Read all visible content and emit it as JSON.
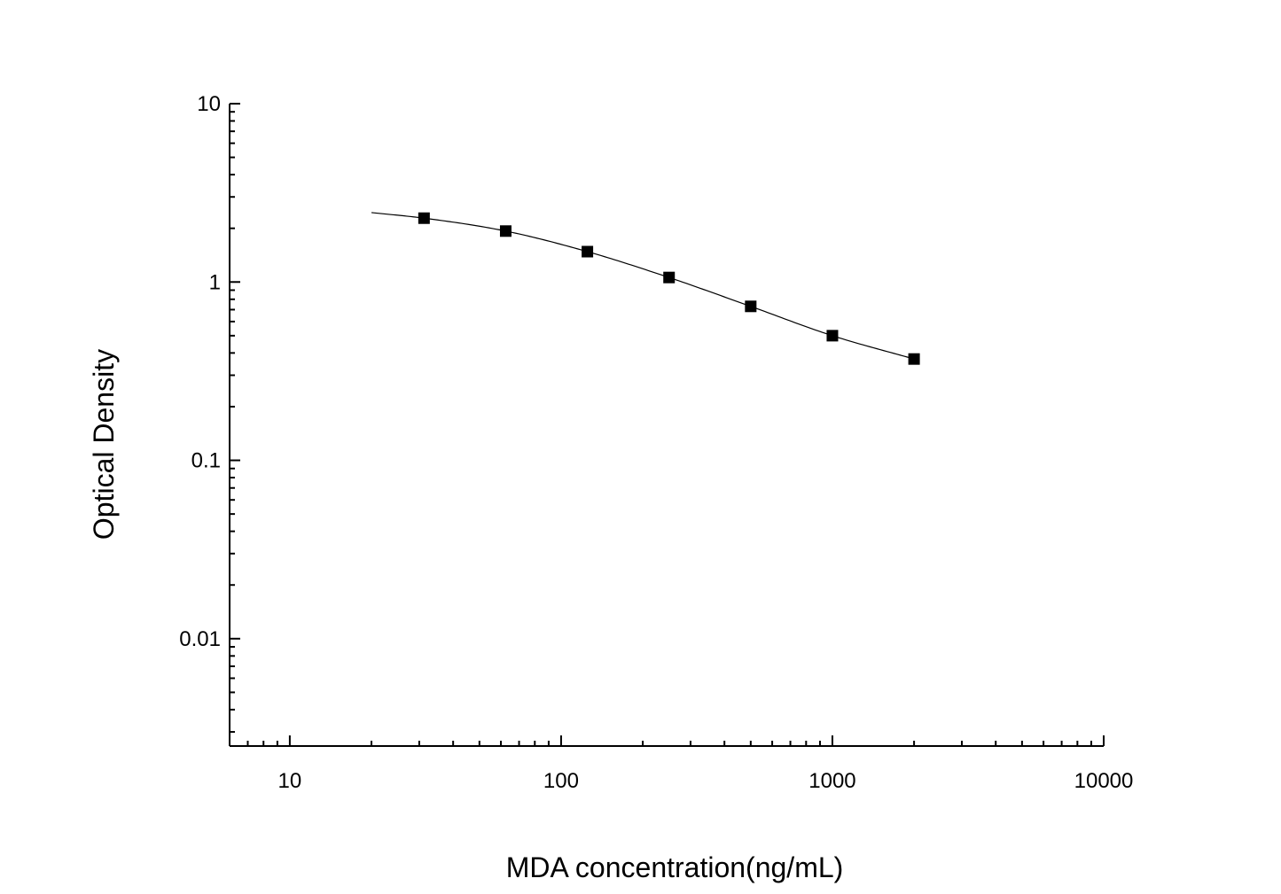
{
  "chart_data": {
    "type": "scatter",
    "title": "",
    "xlabel": "MDA concentration(ng/mL)",
    "ylabel": "Optical Density",
    "x_scale": "log",
    "y_scale": "log",
    "xlim": [
      6,
      10000
    ],
    "ylim": [
      0.0025,
      10
    ],
    "x_ticks": [
      {
        "value": 10,
        "label": "10"
      },
      {
        "value": 100,
        "label": "100"
      },
      {
        "value": 1000,
        "label": "1000"
      },
      {
        "value": 10000,
        "label": "10000"
      }
    ],
    "y_ticks": [
      {
        "value": 0.01,
        "label": "0.01"
      },
      {
        "value": 0.1,
        "label": "0.1"
      },
      {
        "value": 1,
        "label": "1"
      },
      {
        "value": 10,
        "label": "10"
      }
    ],
    "grid": false,
    "legend": "none",
    "series": [
      {
        "marker": "square",
        "color": "#000000",
        "x": [
          31.25,
          62.5,
          125,
          250,
          500,
          1000,
          2000
        ],
        "y": [
          2.28,
          1.93,
          1.48,
          1.06,
          0.73,
          0.5,
          0.37
        ]
      }
    ],
    "fit_curve": {
      "color": "#000000",
      "x_range": [
        20,
        2000
      ],
      "x": [
        20,
        31.25,
        62.5,
        125,
        250,
        500,
        1000,
        2000
      ],
      "y": [
        2.45,
        2.28,
        1.93,
        1.48,
        1.06,
        0.73,
        0.5,
        0.37
      ]
    }
  }
}
